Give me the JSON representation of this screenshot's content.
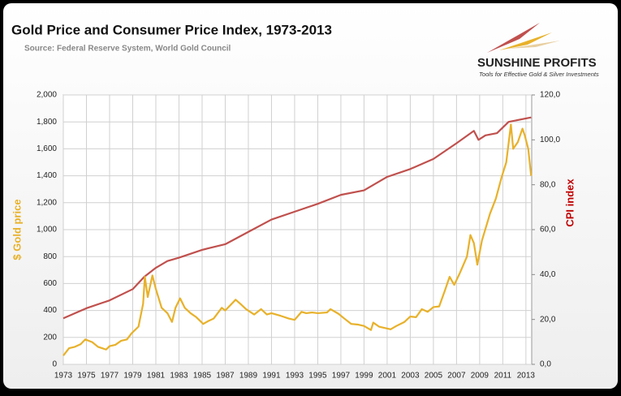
{
  "chart_data": {
    "type": "line",
    "title": "Gold Price and Consumer Price Index, 1973-2013",
    "subtitle": "Source: Federal Reserve System, World Gold Council",
    "logo_text": "SUNSHINE PROFITS",
    "logo_tagline": "Tools for Effective Gold & Silver Investments",
    "y_label": "$ Gold price",
    "y2_label": "CPI index",
    "grid": true,
    "xlim": [
      1973,
      2013.5
    ],
    "xticks": [
      1973,
      1975,
      1977,
      1979,
      1981,
      1983,
      1985,
      1987,
      1989,
      1991,
      1993,
      1995,
      1997,
      1999,
      2001,
      2003,
      2005,
      2007,
      2009,
      2011,
      2013
    ],
    "ylim": [
      0,
      2000
    ],
    "yticks": [
      0,
      200,
      400,
      600,
      800,
      {
        "value": 1000,
        "label": "1,000"
      },
      {
        "value": 1200,
        "label": "1,200"
      },
      {
        "value": 1400,
        "label": "1,400"
      },
      {
        "value": 1600,
        "label": "1,600"
      },
      {
        "value": 1800,
        "label": "1,800"
      },
      {
        "value": 2000,
        "label": "2,000"
      }
    ],
    "y2lim": [
      0,
      120
    ],
    "y2ticks": [
      {
        "value": 0,
        "label": "0,0"
      },
      {
        "value": 20,
        "label": "20,0"
      },
      {
        "value": 40,
        "label": "40,0"
      },
      {
        "value": 60,
        "label": "60,0"
      },
      {
        "value": 80,
        "label": "80,0"
      },
      {
        "value": 100,
        "label": "100,0"
      },
      {
        "value": 120,
        "label": "120,0"
      }
    ],
    "series": [
      {
        "name": "CPI index",
        "color": "#c0504d",
        "axis": "y2",
        "x": [
          1973,
          1975,
          1977,
          1979,
          1980,
          1981,
          1982,
          1983,
          1985,
          1987,
          1989,
          1991,
          1993,
          1995,
          1997,
          1999,
          2001,
          2003,
          2005,
          2007,
          2008.5,
          2008.9,
          2009.5,
          2010.5,
          2011.5,
          2013.45
        ],
        "values": [
          20.5,
          25,
          28.5,
          33.5,
          39,
          43,
          46,
          47.5,
          51,
          53.5,
          59,
          64.5,
          68,
          71.5,
          75.5,
          77.5,
          83.5,
          87,
          91.5,
          98.5,
          104,
          100,
          102,
          103,
          108,
          110
        ]
      },
      {
        "name": "$ Gold price",
        "color": "#e8b12a",
        "x": [
          1973,
          1973.5,
          1974,
          1974.5,
          1974.9,
          1975.5,
          1976,
          1976.7,
          1977,
          1977.5,
          1978,
          1978.5,
          1978.9,
          1979.5,
          1979.9,
          1980.05,
          1980.3,
          1980.7,
          1981,
          1981.5,
          1982,
          1982.4,
          1982.7,
          1983.1,
          1983.5,
          1984,
          1984.5,
          1985.1,
          1985.5,
          1986,
          1986.7,
          1987,
          1987.9,
          1988.3,
          1988.8,
          1989.5,
          1990.1,
          1990.6,
          1991,
          1991.8,
          1992.5,
          1993,
          1993.6,
          1994,
          1994.5,
          1995,
          1995.8,
          1996.1,
          1996.8,
          1997.3,
          1997.9,
          1998.5,
          1999,
          1999.6,
          1999.8,
          2000.3,
          2000.8,
          2001.3,
          2001.8,
          2002.5,
          2003,
          2003.5,
          2004,
          2004.5,
          2005,
          2005.5,
          2006,
          2006.4,
          2006.8,
          2007.3,
          2007.9,
          2008.2,
          2008.5,
          2008.8,
          2009.2,
          2009.9,
          2010.4,
          2010.9,
          2011.3,
          2011.7,
          2011.9,
          2012.3,
          2012.7,
          2012.9,
          2013.2,
          2013.45
        ],
        "values": [
          65,
          120,
          130,
          150,
          185,
          165,
          130,
          110,
          135,
          145,
          175,
          185,
          230,
          280,
          450,
          650,
          500,
          660,
          560,
          420,
          380,
          315,
          420,
          490,
          420,
          380,
          350,
          300,
          320,
          340,
          420,
          400,
          480,
          450,
          410,
          370,
          410,
          370,
          380,
          360,
          340,
          330,
          390,
          380,
          385,
          380,
          385,
          410,
          375,
          340,
          300,
          295,
          285,
          255,
          310,
          280,
          270,
          260,
          285,
          315,
          355,
          350,
          410,
          390,
          425,
          430,
          550,
          650,
          590,
          680,
          800,
          960,
          900,
          740,
          920,
          1120,
          1230,
          1390,
          1500,
          1780,
          1600,
          1650,
          1750,
          1700,
          1600,
          1400
        ]
      }
    ]
  }
}
